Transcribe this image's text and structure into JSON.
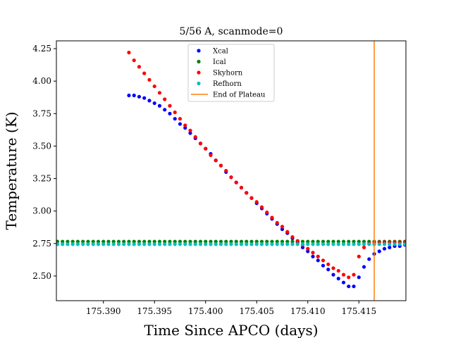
{
  "chart_data": {
    "type": "scatter",
    "title": "5/56 A, scanmode=0",
    "xlabel": "Time Since APCO (days)",
    "ylabel": "Temperature (K)",
    "xlim": [
      175.3854,
      175.4196
    ],
    "ylim": [
      2.31,
      4.31
    ],
    "xticks": [
      175.39,
      175.395,
      175.4,
      175.405,
      175.41,
      175.415
    ],
    "xtick_labels": [
      "175.390",
      "175.395",
      "175.400",
      "175.405",
      "175.410",
      "175.415"
    ],
    "yticks": [
      2.5,
      2.75,
      3.0,
      3.25,
      3.5,
      3.75,
      4.0,
      4.25
    ],
    "ytick_labels": [
      "2.50",
      "2.75",
      "3.00",
      "3.25",
      "3.50",
      "3.75",
      "4.00",
      "4.25"
    ],
    "grid": false,
    "legend_position": "top-center",
    "x": [
      175.3855,
      175.386,
      175.3865,
      175.387,
      175.3875,
      175.388,
      175.3885,
      175.389,
      175.3895,
      175.39,
      175.3905,
      175.391,
      175.3915,
      175.392,
      175.3925,
      175.393,
      175.3935,
      175.394,
      175.3945,
      175.395,
      175.3955,
      175.396,
      175.3965,
      175.397,
      175.3975,
      175.398,
      175.3985,
      175.399,
      175.3995,
      175.4,
      175.4005,
      175.401,
      175.4015,
      175.402,
      175.4025,
      175.403,
      175.4035,
      175.404,
      175.4045,
      175.405,
      175.4055,
      175.406,
      175.4065,
      175.407,
      175.4075,
      175.408,
      175.4085,
      175.409,
      175.4095,
      175.41,
      175.4105,
      175.411,
      175.4115,
      175.412,
      175.4125,
      175.413,
      175.4135,
      175.414,
      175.4145,
      175.415,
      175.4155,
      175.416,
      175.4165,
      175.417,
      175.4175,
      175.418,
      175.4185,
      175.419,
      175.4195
    ],
    "series": [
      {
        "name": "Xcal",
        "color": "#0000ff",
        "values": [
          3.89,
          3.89,
          3.88,
          3.87,
          3.85,
          3.83,
          3.81,
          3.78,
          3.75,
          3.71,
          3.67,
          3.64,
          3.6,
          3.56,
          3.52,
          3.48,
          3.44,
          3.39,
          3.35,
          3.3,
          3.26,
          3.22,
          3.18,
          3.14,
          3.1,
          3.06,
          3.02,
          2.98,
          2.94,
          2.9,
          2.86,
          2.83,
          2.79,
          2.76,
          2.72,
          2.69,
          2.65,
          2.62,
          2.58,
          2.55,
          2.51,
          2.48,
          2.45,
          2.42,
          2.42,
          2.49,
          2.57,
          2.63,
          2.67,
          2.69,
          2.71,
          2.72,
          2.73,
          2.73,
          2.74
        ]
      },
      {
        "name": "Ical",
        "color": "#008000",
        "values": [
          2.765,
          2.765,
          2.765,
          2.765,
          2.765,
          2.765,
          2.765,
          2.765,
          2.765,
          2.765,
          2.765,
          2.765,
          2.765,
          2.765,
          2.765,
          2.765,
          2.765,
          2.765,
          2.765,
          2.765,
          2.765,
          2.765,
          2.765,
          2.765,
          2.765,
          2.765,
          2.765,
          2.765,
          2.765,
          2.765,
          2.765,
          2.765,
          2.765,
          2.765,
          2.765,
          2.765,
          2.765,
          2.765,
          2.765,
          2.765,
          2.765,
          2.765,
          2.765,
          2.765,
          2.765,
          2.765,
          2.765,
          2.765,
          2.765,
          2.765,
          2.765,
          2.765,
          2.765,
          2.765,
          2.765,
          2.765,
          2.765,
          2.765,
          2.765,
          2.765,
          2.765,
          2.765,
          2.765,
          2.765,
          2.765,
          2.765,
          2.765,
          2.765,
          2.765
        ]
      },
      {
        "name": "Skyhorn",
        "color": "#ff0000",
        "values": [
          4.22,
          4.16,
          4.11,
          4.06,
          4.01,
          3.96,
          3.91,
          3.86,
          3.81,
          3.76,
          3.71,
          3.66,
          3.62,
          3.57,
          3.52,
          3.48,
          3.43,
          3.39,
          3.35,
          3.31,
          3.26,
          3.22,
          3.18,
          3.14,
          3.1,
          3.07,
          3.03,
          2.99,
          2.95,
          2.91,
          2.88,
          2.84,
          2.8,
          2.77,
          2.74,
          2.71,
          2.68,
          2.65,
          2.62,
          2.59,
          2.56,
          2.54,
          2.51,
          2.49,
          2.51,
          2.65,
          2.72,
          2.75,
          2.76,
          2.76,
          2.76,
          2.76,
          2.76,
          2.76,
          2.76
        ]
      },
      {
        "name": "Refhorn",
        "color": "#00bfbf",
        "values": [
          2.745,
          2.745,
          2.745,
          2.745,
          2.745,
          2.745,
          2.745,
          2.745,
          2.745,
          2.745,
          2.745,
          2.745,
          2.745,
          2.745,
          2.745,
          2.745,
          2.745,
          2.745,
          2.745,
          2.745,
          2.745,
          2.745,
          2.745,
          2.745,
          2.745,
          2.745,
          2.745,
          2.745,
          2.745,
          2.745,
          2.745,
          2.745,
          2.745,
          2.745,
          2.745,
          2.745,
          2.745,
          2.745,
          2.745,
          2.745,
          2.745,
          2.745,
          2.745,
          2.745,
          2.745,
          2.745,
          2.745,
          2.745,
          2.745,
          2.745,
          2.745,
          2.745,
          2.745,
          2.745,
          2.745,
          2.745,
          2.745,
          2.745,
          2.745,
          2.745,
          2.745,
          2.745,
          2.745,
          2.745,
          2.745,
          2.745,
          2.745,
          2.745,
          2.745
        ]
      }
    ],
    "series_x_offsets": {
      "Xcal": 14,
      "Skyhorn": 14
    },
    "vlines": [
      {
        "name": "End of Plateau",
        "x": 175.4165,
        "color": "#ff7f0e"
      }
    ]
  }
}
